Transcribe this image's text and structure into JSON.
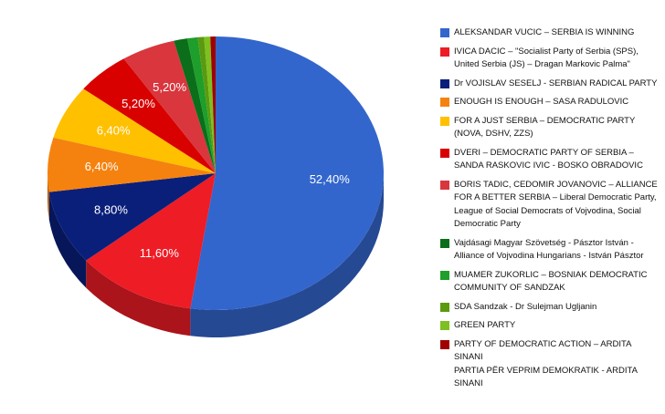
{
  "chart_data": {
    "type": "pie",
    "categories": [
      "ALEKSANDAR VUCIC – SERBIA IS WINNING",
      "IVICA DACIC – \"Socialist Party of Serbia (SPS), United Serbia (JS) – Dragan Markovic Palma\"",
      "Dr VOJISLAV SESELJ - SERBIAN RADICAL PARTY",
      "ENOUGH IS ENOUGH – SASA RADULOVIC",
      "FOR A JUST SERBIA – DEMOCRATIC PARTY (NOVA, DSHV, ZZS)",
      "DVERI – DEMOCRATIC PARTY OF SERBIA – SANDA RASKOVIC IVIC - BOSKO OBRADOVIC",
      "BORIS TADIC, CEDOMIR JOVANOVIC – ALLIANCE FOR A BETTER SERBIA – Liberal Democratic Party, League of Social Democrats of Vojvodina, Social Democratic Party",
      "Vajdásagi Magyar Szövetség - Pásztor István - Alliance of Vojvodina Hungarians - István Pásztor",
      "MUAMER ZUKORLIC – BOSNIAK DEMOCRATIC COMMUNITY OF SANDZAK",
      "SDA Sandzak - Dr Sulejman Ugljanin",
      "GREEN PARTY",
      "PARTY OF DEMOCRATIC ACTION – ARDITA SINANI\nPARTIA PËR VEPRIM DEMOKRATIK - ARDITA SINANI"
    ],
    "values": [
      52.4,
      11.6,
      8.8,
      6.4,
      6.4,
      5.2,
      5.2,
      1.3,
      1.0,
      0.6,
      0.6,
      0.5
    ],
    "value_labels": [
      "52,40%",
      "11,60%",
      "8,80%",
      "6,40%",
      "6,40%",
      "5,20%",
      "5,20%",
      null,
      null,
      null,
      null,
      null
    ],
    "colors": [
      "#3366cc",
      "#ee1c25",
      "#0a1f7a",
      "#f5820f",
      "#ffc000",
      "#d90000",
      "#d9363e",
      "#0b6e1a",
      "#1e9e2a",
      "#5a9a10",
      "#7dc01f",
      "#a00000"
    ]
  }
}
